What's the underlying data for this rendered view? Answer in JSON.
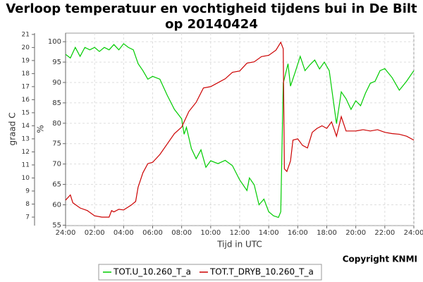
{
  "chart_data": {
    "type": "line",
    "title": "Verloop temperatuur en vochtigheid tijdens bui in De Bilt op 20140424",
    "xlabel": "Tijd in UTC",
    "ylabel": "graad C",
    "y2label": "%",
    "copyright": "Copyright KNMI",
    "grid": true,
    "legend": "bottom",
    "xlim": [
      0,
      24
    ],
    "xticks": [
      {
        "value": 0,
        "label": "24:00"
      },
      {
        "value": 2,
        "label": "02:00"
      },
      {
        "value": 4,
        "label": "04:00"
      },
      {
        "value": 6,
        "label": "06:00"
      },
      {
        "value": 8,
        "label": "08:00"
      },
      {
        "value": 10,
        "label": "10:00"
      },
      {
        "value": 12,
        "label": "12:00"
      },
      {
        "value": 14,
        "label": "14:00"
      },
      {
        "value": 16,
        "label": "16:00"
      },
      {
        "value": 18,
        "label": "18:00"
      },
      {
        "value": 20,
        "label": "20:00"
      },
      {
        "value": 22,
        "label": "22:00"
      },
      {
        "value": 24,
        "label": "24:00"
      }
    ],
    "ylim": [
      6.35,
      21.1
    ],
    "yticks": [
      7,
      8,
      9,
      10,
      11,
      12,
      13,
      14,
      15,
      16,
      17,
      18,
      19,
      20,
      21
    ],
    "y2lim": [
      54.9,
      102.1
    ],
    "y2ticks": [
      55,
      60,
      65,
      70,
      75,
      80,
      85,
      90,
      95,
      100
    ],
    "series": [
      {
        "name": "TOT.U_10.260_T_a",
        "color": "#00cc00",
        "axis": "y2",
        "x": [
          0,
          0.33,
          0.67,
          1,
          1.33,
          1.67,
          2,
          2.33,
          2.67,
          3,
          3.33,
          3.67,
          4,
          4.33,
          4.67,
          5,
          5.33,
          5.67,
          6,
          6.5,
          7,
          7.5,
          8,
          8.17,
          8.33,
          8.67,
          9,
          9.33,
          9.67,
          10,
          10.5,
          11,
          11.5,
          12,
          12.5,
          12.67,
          13,
          13.33,
          13.67,
          14,
          14.33,
          14.67,
          14.83,
          15,
          15.33,
          15.5,
          15.83,
          16.17,
          16.5,
          16.83,
          17.17,
          17.5,
          17.83,
          18.17,
          18.67,
          19,
          19.33,
          19.67,
          20,
          20.33,
          20.67,
          21,
          21.33,
          21.67,
          22,
          22.5,
          23,
          23.5,
          24
        ],
        "values": [
          96.9,
          96,
          98.6,
          96.4,
          98.6,
          98,
          98.6,
          97.6,
          98.6,
          98,
          99.3,
          98,
          99.5,
          98.6,
          98,
          94.6,
          92.9,
          90.8,
          91.5,
          90.8,
          86.9,
          83.4,
          81.1,
          77.3,
          79,
          73.8,
          71.3,
          73.5,
          69.2,
          70.8,
          70.1,
          70.9,
          69.6,
          66.1,
          63.5,
          66.6,
          64.9,
          60,
          61.4,
          58.3,
          57.3,
          56.9,
          58.3,
          89.8,
          94.6,
          89.1,
          92.6,
          96.4,
          92.9,
          94.3,
          95.5,
          93.3,
          95,
          92.9,
          79.9,
          87.7,
          86,
          83.4,
          85.5,
          84.3,
          87.4,
          89.8,
          90.3,
          92.9,
          93.4,
          91.2,
          88.1,
          90.3,
          92.9
        ]
      },
      {
        "name": "TOT.T_DRYB_10.260_T_a",
        "color": "#cc0000",
        "axis": "y",
        "x": [
          0,
          0.33,
          0.5,
          1,
          1.5,
          2,
          2.5,
          3,
          3.17,
          3.33,
          3.67,
          4,
          4.5,
          4.83,
          5,
          5.33,
          5.67,
          6,
          6.5,
          7,
          7.5,
          8,
          8.5,
          9,
          9.5,
          10,
          10.5,
          11,
          11.5,
          12,
          12.5,
          13,
          13.5,
          14,
          14.5,
          14.83,
          15,
          15.08,
          15.25,
          15.5,
          15.67,
          16,
          16.33,
          16.67,
          17,
          17.33,
          17.67,
          18,
          18.33,
          18.67,
          19,
          19.33,
          20,
          20.5,
          21,
          21.5,
          22,
          22.5,
          23,
          23.5,
          24
        ],
        "values": [
          8.3,
          8.7,
          8.1,
          7.7,
          7.5,
          7.1,
          7,
          7,
          7.5,
          7.4,
          7.6,
          7.55,
          7.9,
          8.2,
          9.3,
          10.4,
          11.1,
          11.2,
          11.8,
          12.6,
          13.4,
          13.9,
          15.1,
          15.8,
          16.9,
          17,
          17.3,
          17.6,
          18.1,
          18.2,
          18.8,
          18.9,
          19.3,
          19.4,
          19.8,
          20.4,
          19.9,
          10.7,
          10.5,
          11.3,
          12.9,
          13,
          12.5,
          12.3,
          13.5,
          13.8,
          14,
          13.8,
          14.3,
          13.2,
          14.7,
          13.6,
          13.6,
          13.7,
          13.6,
          13.7,
          13.5,
          13.4,
          13.35,
          13.2,
          12.9
        ]
      }
    ]
  }
}
